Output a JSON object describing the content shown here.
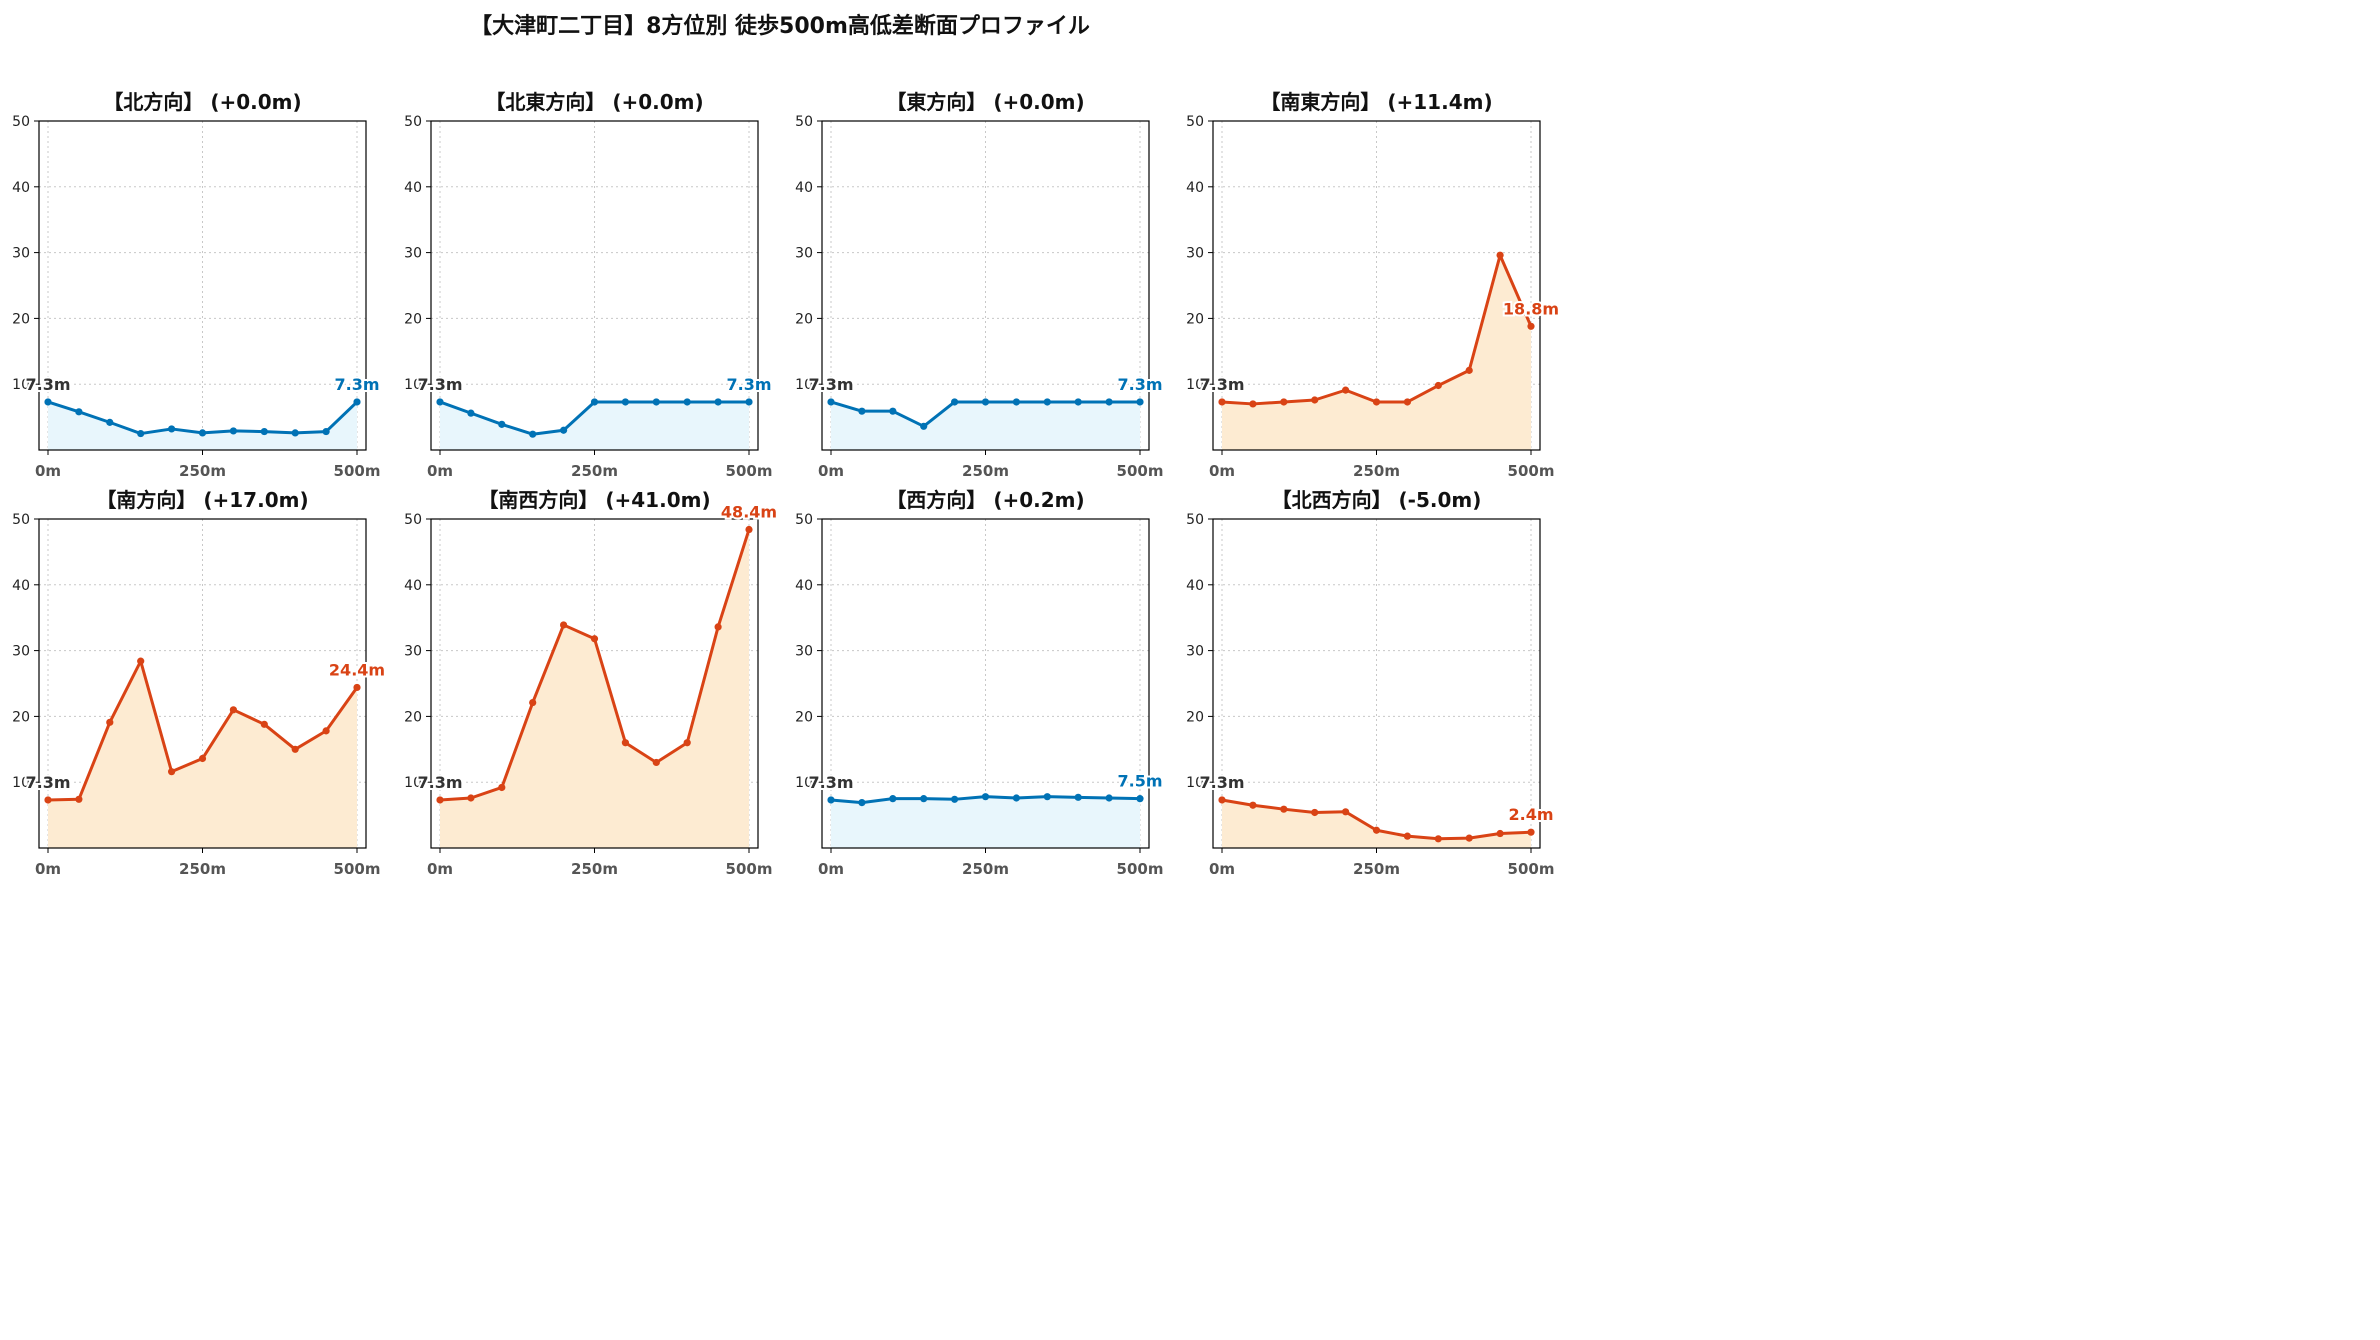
{
  "figure": {
    "title": "【大津町二丁目】8方位別 徒歩500m高低差断面プロファイル"
  },
  "colors": {
    "flat_line": "#0072b5",
    "flat_fill": "#e8f6fc",
    "rise_line": "#d94315",
    "rise_fill": "#fdebd2",
    "start_label": "#333333"
  },
  "chart_data": [
    {
      "type": "area",
      "title": "【北方向】 (+0.0m)",
      "x": [
        0,
        50,
        100,
        150,
        200,
        250,
        300,
        350,
        400,
        450,
        500
      ],
      "y": [
        7.3,
        5.8,
        4.2,
        2.5,
        3.2,
        2.6,
        2.9,
        2.8,
        2.6,
        2.8,
        7.3
      ],
      "xticks": [
        "0m",
        "250m",
        "500m"
      ],
      "yticks": [
        "10",
        "20",
        "30",
        "40",
        "50"
      ],
      "ylim": [
        0,
        50
      ],
      "start_label": "7.3m",
      "end_label": "7.3m",
      "trend": "flat",
      "grid": true
    },
    {
      "type": "area",
      "title": "【北東方向】 (+0.0m)",
      "x": [
        0,
        50,
        100,
        150,
        200,
        250,
        300,
        350,
        400,
        450,
        500
      ],
      "y": [
        7.3,
        5.6,
        3.9,
        2.4,
        3.0,
        7.3,
        7.3,
        7.3,
        7.3,
        7.3,
        7.3
      ],
      "xticks": [
        "0m",
        "250m",
        "500m"
      ],
      "yticks": [
        "10",
        "20",
        "30",
        "40",
        "50"
      ],
      "ylim": [
        0,
        50
      ],
      "start_label": "7.3m",
      "end_label": "7.3m",
      "trend": "flat",
      "grid": true
    },
    {
      "type": "area",
      "title": "【東方向】 (+0.0m)",
      "x": [
        0,
        50,
        100,
        150,
        200,
        250,
        300,
        350,
        400,
        450,
        500
      ],
      "y": [
        7.3,
        5.9,
        5.9,
        3.6,
        7.3,
        7.3,
        7.3,
        7.3,
        7.3,
        7.3,
        7.3
      ],
      "xticks": [
        "0m",
        "250m",
        "500m"
      ],
      "yticks": [
        "10",
        "20",
        "30",
        "40",
        "50"
      ],
      "ylim": [
        0,
        50
      ],
      "start_label": "7.3m",
      "end_label": "7.3m",
      "trend": "flat",
      "grid": true
    },
    {
      "type": "area",
      "title": "【南東方向】 (+11.4m)",
      "x": [
        0,
        50,
        100,
        150,
        200,
        250,
        300,
        350,
        400,
        450,
        500
      ],
      "y": [
        7.3,
        7.0,
        7.3,
        7.6,
        9.1,
        7.3,
        7.3,
        9.8,
        12.1,
        29.6,
        18.8
      ],
      "xticks": [
        "0m",
        "250m",
        "500m"
      ],
      "yticks": [
        "10",
        "20",
        "30",
        "40",
        "50"
      ],
      "ylim": [
        0,
        50
      ],
      "start_label": "7.3m",
      "end_label": "18.8m",
      "trend": "rise",
      "grid": true
    },
    {
      "type": "area",
      "title": "【南方向】 (+17.0m)",
      "x": [
        0,
        50,
        100,
        150,
        200,
        250,
        300,
        350,
        400,
        450,
        500
      ],
      "y": [
        7.3,
        7.4,
        19.1,
        28.4,
        11.6,
        13.6,
        21.0,
        18.8,
        15.0,
        17.8,
        24.4
      ],
      "xticks": [
        "0m",
        "250m",
        "500m"
      ],
      "yticks": [
        "10",
        "20",
        "30",
        "40",
        "50"
      ],
      "ylim": [
        0,
        50
      ],
      "start_label": "7.3m",
      "end_label": "24.4m",
      "trend": "rise",
      "grid": true
    },
    {
      "type": "area",
      "title": "【南西方向】 (+41.0m)",
      "x": [
        0,
        50,
        100,
        150,
        200,
        250,
        300,
        350,
        400,
        450,
        500
      ],
      "y": [
        7.3,
        7.6,
        9.2,
        22.1,
        33.9,
        31.8,
        16.0,
        13.0,
        16.0,
        33.6,
        48.4
      ],
      "xticks": [
        "0m",
        "250m",
        "500m"
      ],
      "yticks": [
        "10",
        "20",
        "30",
        "40",
        "50"
      ],
      "ylim": [
        0,
        50
      ],
      "start_label": "7.3m",
      "end_label": "48.4m",
      "trend": "rise",
      "grid": true
    },
    {
      "type": "area",
      "title": "【西方向】 (+0.2m)",
      "x": [
        0,
        50,
        100,
        150,
        200,
        250,
        300,
        350,
        400,
        450,
        500
      ],
      "y": [
        7.3,
        6.9,
        7.5,
        7.5,
        7.4,
        7.8,
        7.6,
        7.8,
        7.7,
        7.6,
        7.5
      ],
      "xticks": [
        "0m",
        "250m",
        "500m"
      ],
      "yticks": [
        "10",
        "20",
        "30",
        "40",
        "50"
      ],
      "ylim": [
        0,
        50
      ],
      "start_label": "7.3m",
      "end_label": "7.5m",
      "trend": "flat",
      "grid": true
    },
    {
      "type": "area",
      "title": "【北西方向】 (-5.0m)",
      "x": [
        0,
        50,
        100,
        150,
        200,
        250,
        300,
        350,
        400,
        450,
        500
      ],
      "y": [
        7.3,
        6.5,
        5.9,
        5.4,
        5.5,
        2.7,
        1.8,
        1.4,
        1.5,
        2.2,
        2.4
      ],
      "xticks": [
        "0m",
        "250m",
        "500m"
      ],
      "yticks": [
        "10",
        "20",
        "30",
        "40",
        "50"
      ],
      "ylim": [
        0,
        50
      ],
      "start_label": "7.3m",
      "end_label": "2.4m",
      "trend": "fall",
      "grid": true
    }
  ]
}
